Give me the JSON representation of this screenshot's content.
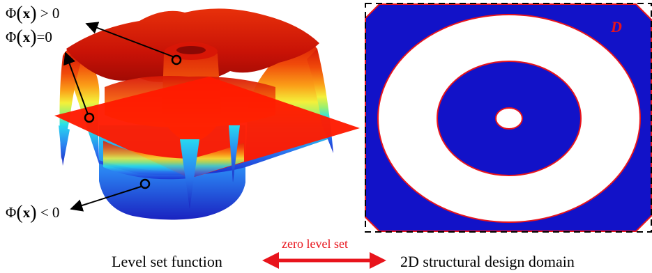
{
  "annotations": {
    "phi_gt": {
      "lhs": "Φ",
      "arg": "x",
      "rhs": " > 0"
    },
    "phi_eq": {
      "lhs": "Φ",
      "arg": "x",
      "rhs": "=0"
    },
    "phi_lt": {
      "lhs": "Φ",
      "arg": "x",
      "rhs": " < 0"
    }
  },
  "captions": {
    "left": "Level set function",
    "middle": "zero level set",
    "right": "2D structural design domain"
  },
  "domain_label": "D",
  "colors": {
    "domain_fill": "#1212c8",
    "boundary": "#e8141c",
    "hole_fill": "#ffffff",
    "arrow": "#e8141c",
    "plane": "#ff1a00"
  },
  "icons": {
    "marker": "open-circle-marker",
    "pointer": "black-arrow",
    "double_arrow": "red-double-arrow"
  }
}
